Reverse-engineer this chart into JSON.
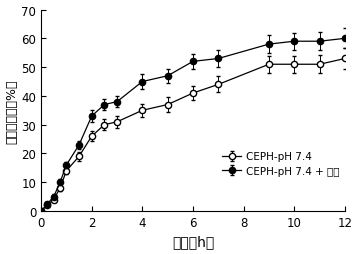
{
  "time": [
    0,
    0.25,
    0.5,
    0.75,
    1,
    1.5,
    2,
    2.5,
    3,
    4,
    5,
    6,
    7,
    9,
    10,
    11,
    12
  ],
  "series1_y": [
    0,
    2,
    4,
    8,
    14,
    19,
    26,
    30,
    31,
    35,
    37,
    41,
    44,
    51,
    51,
    51,
    53
  ],
  "series1_err": [
    0,
    0.5,
    0.8,
    1.0,
    1.2,
    1.5,
    1.8,
    2.0,
    2.0,
    2.2,
    2.5,
    2.5,
    2.8,
    3.0,
    3.0,
    3.2,
    3.5
  ],
  "series2_y": [
    0,
    2.5,
    5,
    10,
    16,
    23,
    33,
    37,
    38,
    45,
    47,
    52,
    53,
    58,
    59,
    59,
    60
  ],
  "series2_err": [
    0,
    0.5,
    0.8,
    1.0,
    1.2,
    1.5,
    2.0,
    2.0,
    2.0,
    2.5,
    2.5,
    2.5,
    2.8,
    3.0,
    3.0,
    3.2,
    3.5
  ],
  "xlabel": "时间（h）",
  "ylabel": "累积释放率（%）",
  "xlim": [
    0,
    12
  ],
  "ylim": [
    0,
    70
  ],
  "xticks": [
    0,
    2,
    4,
    6,
    8,
    10,
    12
  ],
  "yticks": [
    0,
    10,
    20,
    30,
    40,
    50,
    60,
    70
  ],
  "legend1": "CEPH-pH 7.4",
  "legend2": "CEPH-pH 7.4 + 超声",
  "color_open": "#000000",
  "color_filled": "#000000",
  "bg_color": "#ffffff"
}
